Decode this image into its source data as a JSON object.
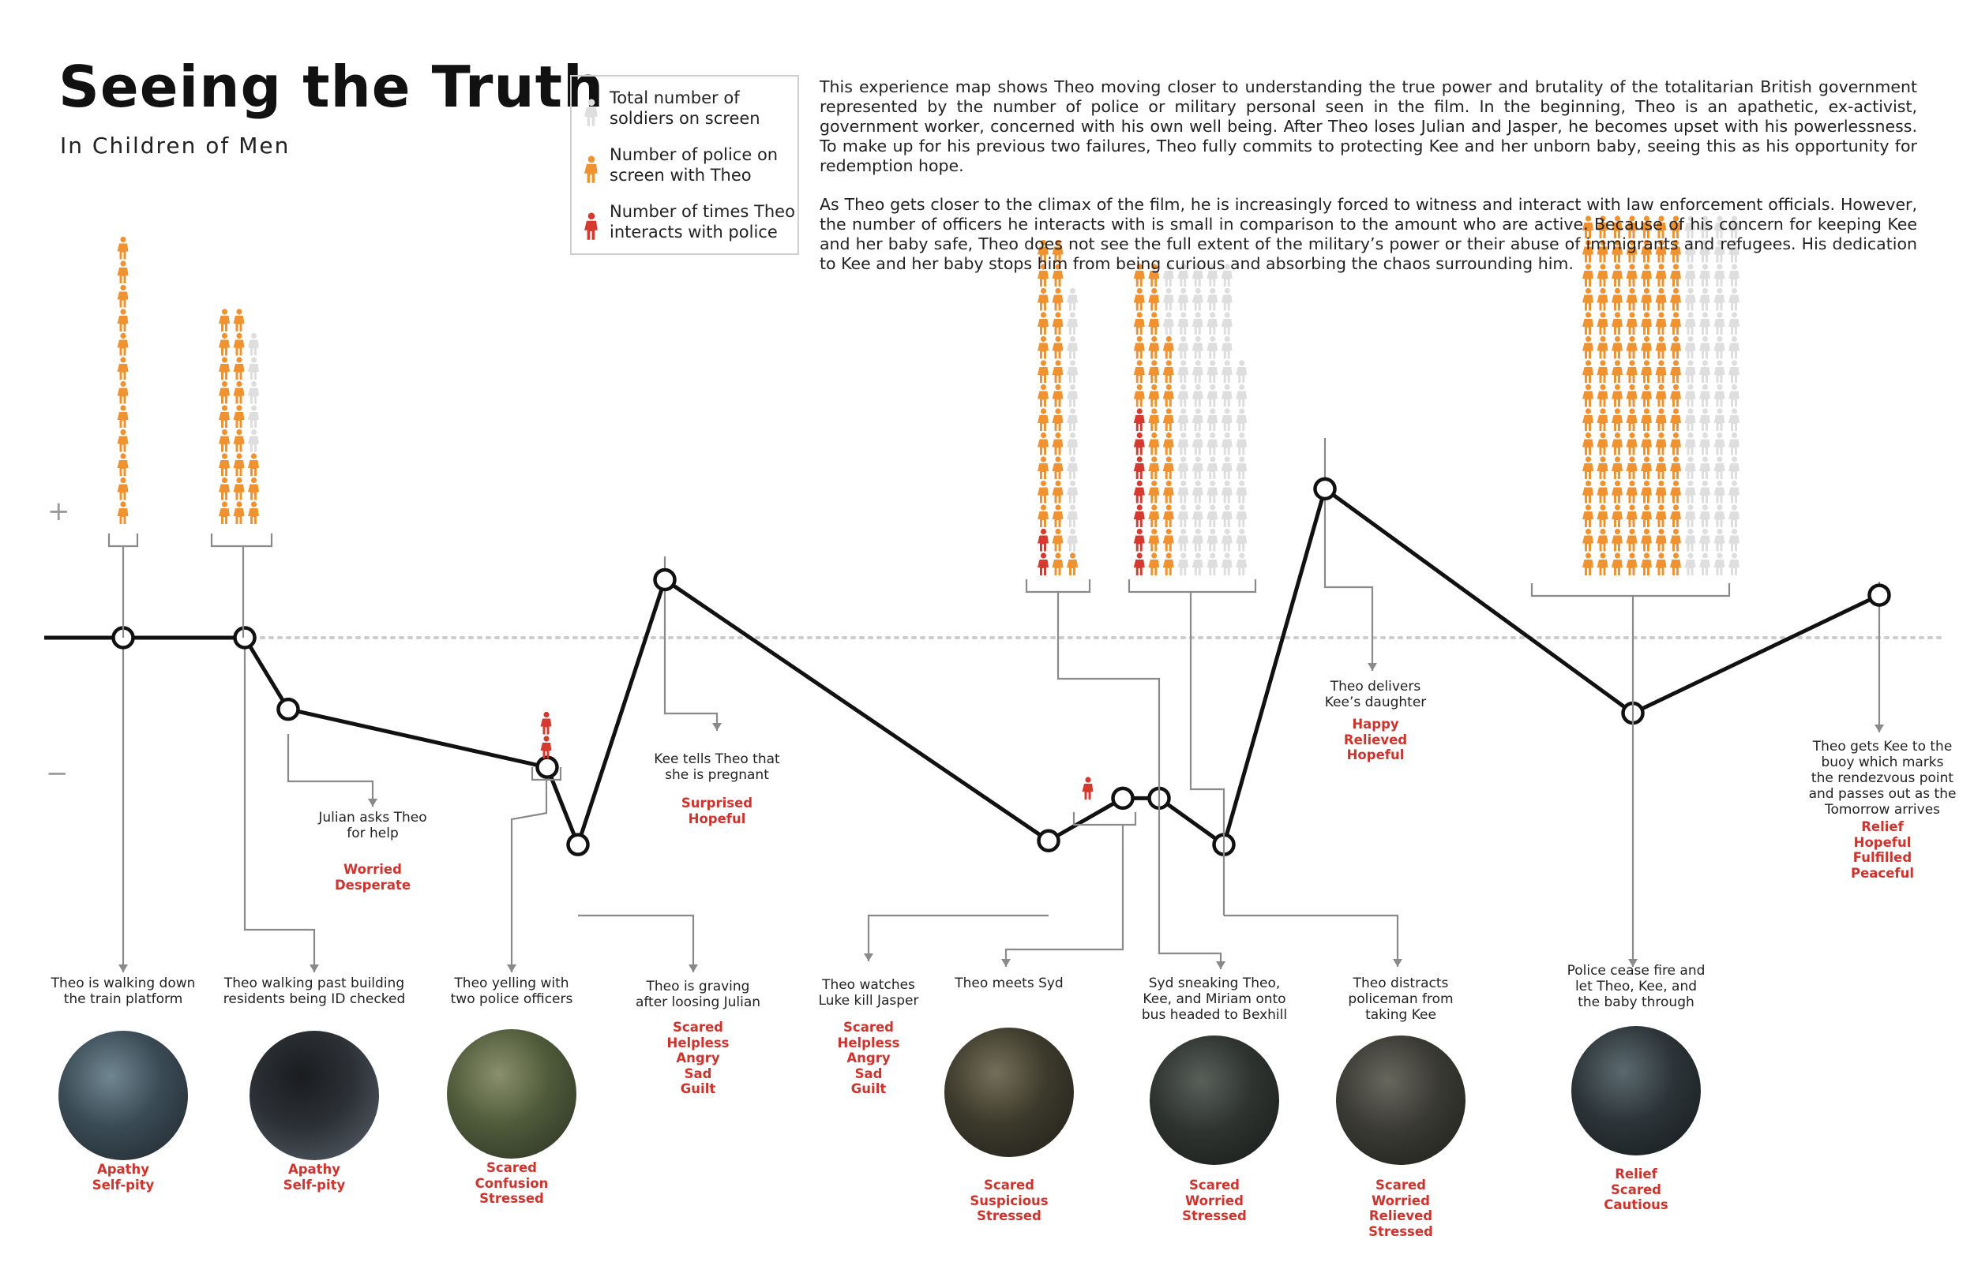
{
  "title": "Seeing the Truth",
  "subtitle": "In Children of Men",
  "legend": {
    "items": [
      {
        "label": "Total number of soldiers on screen",
        "color": "#dedede"
      },
      {
        "label": "Number of police on screen with Theo",
        "color": "#f0922f"
      },
      {
        "label": "Number of times Theo interacts with police",
        "color": "#d63a2f"
      }
    ]
  },
  "description": [
    "This experience map shows Theo moving closer to understanding the true power and brutality of the totalitarian British government represented by the number of police or military personal seen in the film. In the beginning, Theo is an apathetic, ex-activist, government worker, concerned with his own well being. After Theo loses Julian and Jasper, he becomes upset with his powerlessness. To make up for his previous two failures, Theo fully commits to protecting Kee and her unborn baby, seeing this as his opportunity for redemption hope.",
    "As Theo gets closer to the climax of the film, he is increasingly forced to witness and interact with law enforcement officials. However, the number of officers he interacts with is small in comparison to the amount who are active. Because of his concern for keeping Kee and her baby safe, Theo does not see the full extent of the military’s power or their abuse of immigrants and refugees. His dedication to Kee and her baby stops him from being curious and absorbing the chaos surrounding him."
  ],
  "axis": {
    "plus": "+",
    "minus": "−"
  },
  "colors": {
    "line": "#111111",
    "baseline": "#cccccc",
    "connector": "#8a8a8a",
    "emotion": "#d0322c",
    "orange": "#f0922f",
    "red": "#d63a2f",
    "gray": "#dedede"
  },
  "events": [
    {
      "label": "Theo is walking down\nthe train platform",
      "emotions": "Apathy\nSelf-pity",
      "photo": true
    },
    {
      "label": "Theo walking past building\nresidents being ID checked",
      "emotions": "Apathy\nSelf-pity",
      "photo": true
    },
    {
      "label": "Julian asks Theo\nfor help",
      "emotions": "Worried\nDesperate",
      "photo": false
    },
    {
      "label": "Theo yelling with\ntwo police officers",
      "emotions": "Scared\nConfusion\nStressed",
      "photo": true
    },
    {
      "label": "Theo is graving\nafter loosing Julian",
      "emotions": "Scared\nHelpless\nAngry\nSad\nGuilt",
      "photo": false
    },
    {
      "label": "Kee tells Theo that\nshe is pregnant",
      "emotions": "Surprised\nHopeful",
      "photo": false
    },
    {
      "label": "Theo watches\nLuke kill Jasper",
      "emotions": "Scared\nHelpless\nAngry\nSad\nGuilt",
      "photo": false
    },
    {
      "label": "Theo meets Syd",
      "emotions": "Scared\nSuspicious\nStressed",
      "photo": true
    },
    {
      "label": "Syd sneaking Theo,\nKee, and Miriam onto\nbus headed to Bexhill",
      "emotions": "Scared\nWorried\nStressed",
      "photo": true
    },
    {
      "label": "Theo distracts\npoliceman from\ntaking Kee",
      "emotions": "Scared\nWorried\nRelieved\nStressed",
      "photo": true
    },
    {
      "label": "Theo delivers\nKee’s daughter",
      "emotions": "Happy\nRelieved\nHopeful",
      "photo": false
    },
    {
      "label": "Police cease fire and\nlet Theo, Kee, and\nthe baby through",
      "emotions": "Relief\nScared\nCautious",
      "photo": true
    },
    {
      "label": "Theo gets Kee to the\nbuoy which marks\nthe rendezvous point\nand passes out as the\nTomorrow arrives",
      "emotions": "Relief\nHopeful\nFulfilled\nPeaceful",
      "photo": false
    }
  ],
  "chart_data": {
    "type": "line",
    "x": [
      "Theo is walking down the train platform",
      "Theo walking past building residents being ID checked",
      "Julian asks Theo for help",
      "Theo yelling with two police officers",
      "Theo is graving after loosing Julian",
      "Kee tells Theo that she is pregnant",
      "Theo watches Luke kill Jasper",
      "Theo meets Syd",
      "Syd sneaking Theo, Kee, and Miriam onto bus headed to Bexhill",
      "Theo distracts policeman from taking Kee",
      "Theo delivers Kee’s daughter",
      "Police cease fire and let Theo, Kee, and the baby through",
      "Theo gets Kee to the buoy which marks the rendezvous point and passes out as the Tomorrow arrives"
    ],
    "series": [
      {
        "values": [
          0,
          0,
          -0.37,
          -0.67,
          -1.07,
          0.3,
          -1.05,
          -0.83,
          -0.83,
          -1.07,
          0.77,
          -0.39,
          0.22
        ]
      }
    ],
    "icon_groups": [
      {
        "event": 0,
        "gray": 0,
        "orange": 12,
        "red": 0
      },
      {
        "event": 1,
        "gray": 5,
        "orange": 21,
        "red": 0
      },
      {
        "event": 3,
        "gray": 0,
        "orange": 0,
        "red": 2
      },
      {
        "event": 7,
        "gray": 0,
        "orange": 0,
        "red": 1
      },
      {
        "event": 8,
        "gray": 11,
        "orange": 27,
        "red": 2
      },
      {
        "event": 9,
        "gray": 64,
        "orange": 29,
        "red": 7
      },
      {
        "event": 11,
        "gray": 60,
        "orange": 105,
        "red": 0
      }
    ],
    "ylim": [
      -1.2,
      1.2
    ]
  }
}
